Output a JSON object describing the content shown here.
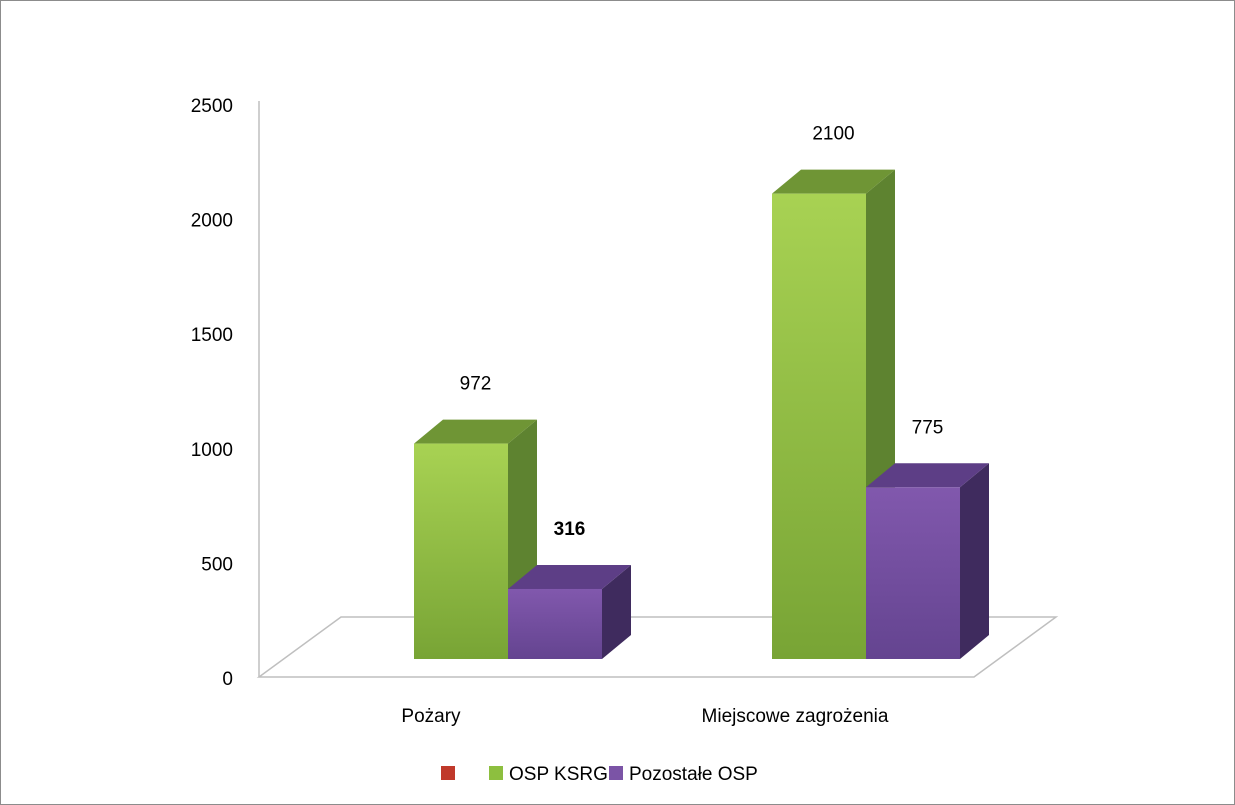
{
  "chart_data": {
    "type": "bar",
    "categories": [
      "Pożary",
      "Miejscowe zagrożenia"
    ],
    "series": [
      {
        "name": "",
        "color": "#c0392b",
        "values": [
          null,
          null
        ]
      },
      {
        "name": "OSP KSRG",
        "color": "#8dbf3f",
        "values": [
          972,
          2100
        ]
      },
      {
        "name": "Pozostałe OSP",
        "color": "#7b54a6",
        "values": [
          316,
          775
        ]
      }
    ],
    "data_labels": [
      {
        "text": "972",
        "bold": false
      },
      {
        "text": "316",
        "bold": true
      },
      {
        "text": "2100",
        "bold": false
      },
      {
        "text": "775",
        "bold": false
      }
    ],
    "y_ticks": [
      "0",
      "500",
      "1000",
      "1500",
      "2000",
      "2500"
    ],
    "ylim": [
      0,
      2500
    ],
    "grid": false,
    "legend_position": "bottom",
    "style": "3d-column"
  }
}
